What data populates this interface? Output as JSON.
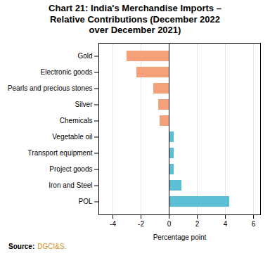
{
  "chart_data": {
    "type": "bar",
    "orientation": "horizontal",
    "title": "Chart 21: India's Merchandise Imports –\nRelative Contributions (December 2022\nover December 2021)",
    "categories": [
      "Gold",
      "Electronic goods",
      "Pearls and precious stones",
      "Silver",
      "Chemicals",
      "Vegetable oil",
      "Transport equipment",
      "Project goods",
      "Iron and Steel",
      "POL"
    ],
    "values": [
      -3.0,
      -2.3,
      -1.1,
      -0.75,
      -0.65,
      0.35,
      0.35,
      0.35,
      0.9,
      4.3
    ],
    "colors": [
      "#F4A07A",
      "#F4A07A",
      "#F4A07A",
      "#F4A07A",
      "#F4A07A",
      "#5BBFD6",
      "#5BBFD6",
      "#5BBFD6",
      "#5BBFD6",
      "#5BBFD6"
    ],
    "xlabel": "Percentage point",
    "xlim": [
      -5.0,
      6.5
    ],
    "xticks": [
      -4,
      -2,
      0,
      2,
      4,
      6
    ],
    "grid": true,
    "annotations": [
      {
        "text": "Source:"
      },
      {
        "text": "DGCI&S.",
        "color": "#D4921E"
      }
    ]
  }
}
